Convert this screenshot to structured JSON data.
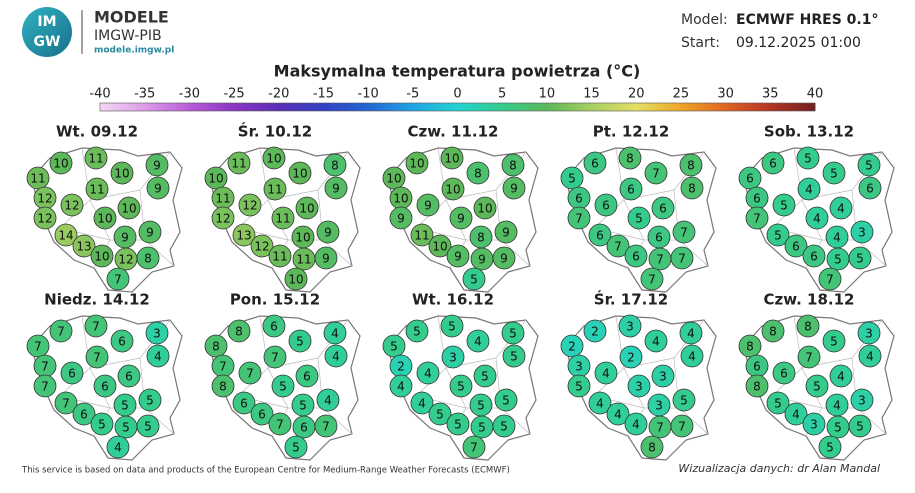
{
  "header": {
    "logo": [
      "IM",
      "GW"
    ],
    "brand": "MODELE",
    "org": "IMGW-PIB",
    "url": "modele.imgw.pl",
    "model_label": "Model:",
    "model": "ECMWF HRES 0.1°",
    "start_label": "Start:",
    "start": "09.12.2025 01:00"
  },
  "title": "Maksymalna temperatura powietrza (°C)",
  "scale": {
    "ticks": [
      -40,
      -35,
      -30,
      -25,
      -20,
      -15,
      -10,
      -5,
      0,
      5,
      10,
      15,
      20,
      25,
      30,
      35,
      40
    ],
    "colors": [
      "#f4d8f4",
      "#dc9ce8",
      "#b85cd8",
      "#8a34c4",
      "#5a2eb4",
      "#3242c4",
      "#2466d4",
      "#20a4e4",
      "#22d4d0",
      "#34cc8c",
      "#5cb858",
      "#a8d060",
      "#e4e064",
      "#f0a428",
      "#e06424",
      "#b43424",
      "#6e2020"
    ]
  },
  "maps": [
    {
      "day": "Wt. 09.12",
      "values": [
        10,
        11,
        9,
        11,
        10,
        9,
        11,
        12,
        12,
        10,
        12,
        10,
        9,
        14,
        9,
        13,
        10,
        12,
        8,
        7
      ]
    },
    {
      "day": "Śr. 10.12",
      "values": [
        11,
        10,
        8,
        10,
        10,
        9,
        11,
        11,
        12,
        10,
        12,
        11,
        9,
        13,
        10,
        12,
        11,
        11,
        9,
        10
      ]
    },
    {
      "day": "Czw. 11.12",
      "values": [
        10,
        10,
        8,
        10,
        8,
        9,
        10,
        10,
        9,
        10,
        9,
        9,
        9,
        11,
        8,
        10,
        9,
        9,
        9,
        5
      ]
    },
    {
      "day": "Pt. 12.12",
      "values": [
        6,
        8,
        8,
        5,
        7,
        8,
        6,
        6,
        6,
        6,
        7,
        5,
        7,
        6,
        6,
        7,
        6,
        7,
        7,
        7
      ]
    },
    {
      "day": "Sob. 13.12",
      "values": [
        6,
        5,
        5,
        6,
        5,
        6,
        4,
        6,
        5,
        4,
        7,
        4,
        3,
        5,
        4,
        6,
        6,
        5,
        5,
        7
      ]
    },
    {
      "day": "Niedz. 14.12",
      "values": [
        7,
        7,
        3,
        7,
        6,
        4,
        7,
        7,
        6,
        6,
        7,
        6,
        5,
        7,
        5,
        6,
        5,
        5,
        5,
        4
      ]
    },
    {
      "day": "Pon. 15.12",
      "values": [
        8,
        6,
        4,
        8,
        5,
        4,
        7,
        7,
        7,
        6,
        8,
        5,
        4,
        6,
        5,
        6,
        7,
        6,
        7,
        5
      ]
    },
    {
      "day": "Wt. 16.12",
      "values": [
        5,
        5,
        5,
        5,
        4,
        5,
        3,
        2,
        4,
        5,
        4,
        5,
        5,
        4,
        5,
        5,
        5,
        5,
        5,
        7
      ]
    },
    {
      "day": "Śr. 17.12",
      "values": [
        2,
        3,
        4,
        2,
        4,
        4,
        2,
        3,
        4,
        3,
        5,
        3,
        5,
        4,
        3,
        4,
        4,
        7,
        7,
        8
      ]
    },
    {
      "day": "Czw. 18.12",
      "values": [
        8,
        8,
        3,
        8,
        5,
        4,
        7,
        6,
        6,
        4,
        8,
        5,
        3,
        5,
        4,
        4,
        3,
        5,
        5,
        5
      ]
    }
  ],
  "footer": {
    "source": "This service is based on data and products of the European Centre for Medium-Range Weather Forecasts (ECMWF)",
    "credit": "Wizualizacja danych: dr Alan Mandal"
  }
}
